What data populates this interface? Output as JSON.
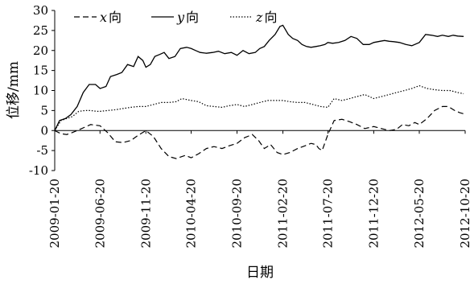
{
  "chart_data": {
    "type": "line",
    "xlabel": "日期",
    "ylabel": "位移/mm",
    "ylim": [
      -10,
      30
    ],
    "yticks": [
      -10,
      -5,
      0,
      5,
      10,
      15,
      20,
      25,
      30
    ],
    "x_range": [
      "2009-01-20",
      "2012-10-20"
    ],
    "x_tick_labels": [
      "2009-01-20",
      "2009-06-20",
      "2009-11-20",
      "2010-04-20",
      "2010-09-20",
      "2011-02-20",
      "2011-07-20",
      "2011-12-20",
      "2012-05-20",
      "2012-10-20"
    ],
    "grid": false,
    "legend_position": "top-left",
    "series": [
      {
        "name": "x向",
        "legend_var": "x",
        "legend_suffix": "向",
        "style": "dashed",
        "x": [
          "2009-01-20",
          "2009-02-10",
          "2009-03-01",
          "2009-03-20",
          "2009-04-20",
          "2009-05-20",
          "2009-06-20",
          "2009-07-15",
          "2009-08-10",
          "2009-09-05",
          "2009-10-01",
          "2009-10-25",
          "2009-11-20",
          "2009-12-15",
          "2010-01-10",
          "2010-02-05",
          "2010-03-01",
          "2010-04-01",
          "2010-04-20",
          "2010-05-15",
          "2010-06-10",
          "2010-07-05",
          "2010-08-01",
          "2010-08-25",
          "2010-09-20",
          "2010-10-15",
          "2010-11-10",
          "2010-12-01",
          "2010-12-20",
          "2011-01-10",
          "2011-02-01",
          "2011-02-20",
          "2011-03-15",
          "2011-04-10",
          "2011-05-05",
          "2011-05-25",
          "2011-06-10",
          "2011-06-20",
          "2011-07-01",
          "2011-07-20",
          "2011-08-10",
          "2011-09-05",
          "2011-10-01",
          "2011-10-25",
          "2011-11-20",
          "2011-12-20",
          "2012-01-15",
          "2012-02-10",
          "2012-03-05",
          "2012-03-25",
          "2012-04-15",
          "2012-05-05",
          "2012-05-20",
          "2012-06-15",
          "2012-07-10",
          "2012-08-05",
          "2012-08-25",
          "2012-09-15",
          "2012-10-01",
          "2012-10-15"
        ],
        "values": [
          0,
          -0.8,
          -1,
          -0.5,
          0.5,
          1.5,
          1.2,
          -0.5,
          -2.8,
          -3,
          -2.5,
          -1.2,
          0,
          -1.5,
          -4.5,
          -6.5,
          -7,
          -6.2,
          -6.8,
          -5.8,
          -4.5,
          -4,
          -4.5,
          -3.8,
          -3.2,
          -1.8,
          -1,
          -2.5,
          -4.5,
          -3.5,
          -5.5,
          -6,
          -5.5,
          -4.5,
          -3.8,
          -3.2,
          -3.5,
          -4.5,
          -5,
          -1,
          2.5,
          2.8,
          2.2,
          1.5,
          0.5,
          1,
          0.5,
          0,
          0.3,
          1.5,
          1.2,
          2,
          1.5,
          3,
          5,
          6,
          6,
          5,
          4.5,
          4.2
        ]
      },
      {
        "name": "y向",
        "legend_var": "y",
        "legend_suffix": "向",
        "style": "solid",
        "x": [
          "2009-01-20",
          "2009-02-05",
          "2009-02-25",
          "2009-03-15",
          "2009-04-05",
          "2009-04-25",
          "2009-05-15",
          "2009-06-05",
          "2009-06-20",
          "2009-07-10",
          "2009-07-25",
          "2009-08-15",
          "2009-09-01",
          "2009-09-20",
          "2009-10-10",
          "2009-10-25",
          "2009-11-10",
          "2009-11-20",
          "2009-12-05",
          "2009-12-20",
          "2010-01-05",
          "2010-01-20",
          "2010-02-05",
          "2010-02-25",
          "2010-03-15",
          "2010-04-05",
          "2010-04-20",
          "2010-05-05",
          "2010-05-20",
          "2010-06-10",
          "2010-07-01",
          "2010-07-20",
          "2010-08-10",
          "2010-09-01",
          "2010-09-20",
          "2010-10-10",
          "2010-10-30",
          "2010-11-20",
          "2010-12-05",
          "2010-12-20",
          "2011-01-05",
          "2011-01-25",
          "2011-02-10",
          "2011-02-20",
          "2011-03-10",
          "2011-03-25",
          "2011-04-10",
          "2011-04-25",
          "2011-05-10",
          "2011-05-25",
          "2011-06-10",
          "2011-06-25",
          "2011-07-10",
          "2011-07-20",
          "2011-08-05",
          "2011-08-25",
          "2011-09-15",
          "2011-10-05",
          "2011-10-25",
          "2011-11-15",
          "2011-12-05",
          "2011-12-20",
          "2012-01-10",
          "2012-01-25",
          "2012-02-10",
          "2012-02-25",
          "2012-03-15",
          "2012-04-05",
          "2012-04-25",
          "2012-05-20",
          "2012-06-10",
          "2012-06-30",
          "2012-07-20",
          "2012-08-05",
          "2012-08-25",
          "2012-09-10",
          "2012-09-25",
          "2012-10-15"
        ],
        "values": [
          0,
          2.5,
          3,
          4,
          6,
          9.5,
          11.5,
          11.5,
          10.5,
          11,
          13.5,
          14,
          14.5,
          16.5,
          16,
          18.5,
          17.5,
          15.8,
          16.5,
          18.5,
          19,
          19.5,
          18,
          18.5,
          20.5,
          20.8,
          20.5,
          20,
          19.5,
          19.3,
          19.5,
          19.8,
          19.2,
          19.5,
          18.8,
          20,
          19.2,
          19.5,
          20.5,
          21,
          22.5,
          24,
          26,
          26.3,
          24,
          23,
          22.5,
          21.5,
          21,
          20.8,
          21,
          21.2,
          21.5,
          22,
          21.8,
          22,
          22.5,
          23.5,
          23,
          21.5,
          21.5,
          22,
          22.3,
          22.5,
          22.3,
          22.2,
          22,
          21.5,
          21.2,
          22,
          24,
          23.8,
          23.5,
          23.8,
          23.5,
          23.8,
          23.6,
          23.5
        ]
      },
      {
        "name": "z向",
        "legend_var": "z",
        "legend_suffix": "向",
        "style": "dotted",
        "x": [
          "2009-01-20",
          "2009-02-10",
          "2009-03-01",
          "2009-03-20",
          "2009-04-10",
          "2009-05-01",
          "2009-05-20",
          "2009-06-10",
          "2009-06-20",
          "2009-07-15",
          "2009-08-10",
          "2009-09-05",
          "2009-10-01",
          "2009-10-25",
          "2009-11-20",
          "2009-12-15",
          "2010-01-10",
          "2010-02-05",
          "2010-03-01",
          "2010-03-20",
          "2010-04-20",
          "2010-05-15",
          "2010-06-10",
          "2010-07-05",
          "2010-08-01",
          "2010-08-25",
          "2010-09-20",
          "2010-10-15",
          "2010-11-10",
          "2010-12-05",
          "2011-01-01",
          "2011-01-25",
          "2011-02-20",
          "2011-03-15",
          "2011-04-10",
          "2011-05-05",
          "2011-06-01",
          "2011-06-25",
          "2011-07-20",
          "2011-08-10",
          "2011-09-05",
          "2011-10-01",
          "2011-10-25",
          "2011-11-20",
          "2011-12-20",
          "2012-01-15",
          "2012-02-10",
          "2012-03-05",
          "2012-04-01",
          "2012-04-25",
          "2012-05-20",
          "2012-06-15",
          "2012-07-10",
          "2012-08-05",
          "2012-08-30",
          "2012-09-25",
          "2012-10-15"
        ],
        "values": [
          0,
          2.5,
          3,
          3.5,
          4.8,
          5,
          5,
          4.8,
          4.8,
          5,
          5.2,
          5.5,
          5.8,
          6,
          6,
          6.5,
          7,
          7,
          7.2,
          8,
          7.5,
          7.2,
          6.2,
          6,
          5.8,
          6.2,
          6.5,
          6,
          6.5,
          7,
          7.5,
          7.5,
          7.5,
          7.2,
          7,
          7,
          6.5,
          6,
          5.8,
          8,
          7.5,
          8,
          8.5,
          9,
          8,
          8.5,
          9,
          9.5,
          10,
          10.5,
          11.2,
          10.5,
          10.2,
          10,
          10,
          9.5,
          9.2
        ]
      }
    ]
  }
}
